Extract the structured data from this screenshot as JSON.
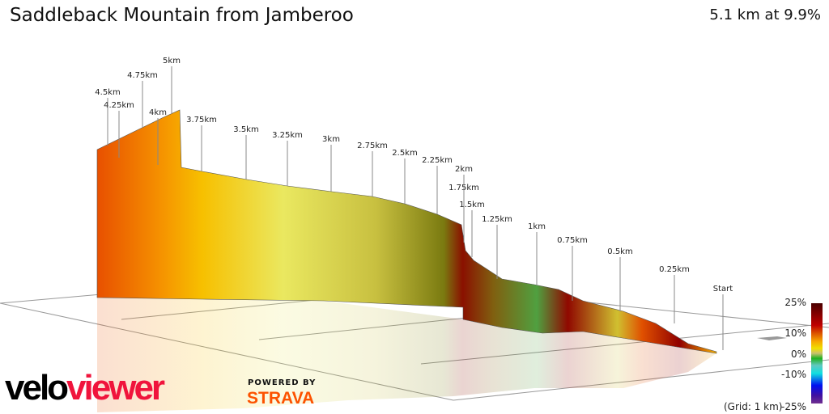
{
  "header": {
    "title": "Saddleback Mountain from Jamberoo",
    "summary": "5.1 km at 9.9%"
  },
  "chart_data": {
    "type": "area",
    "title": "Saddleback Mountain from Jamberoo",
    "distance_km": 5.1,
    "average_gradient_pct": 9.9,
    "markers": [
      "Start",
      "0.25km",
      "0.5km",
      "0.75km",
      "1km",
      "1.25km",
      "1.5km",
      "1.75km",
      "2km",
      "2.25km",
      "2.5km",
      "2.75km",
      "3km",
      "3.25km",
      "3.5km",
      "3.75km",
      "4km",
      "4.25km",
      "4.5km",
      "4.75km",
      "5km"
    ],
    "color_scale": {
      "ticks": [
        "25%",
        "10%",
        "0%",
        "-10%",
        "-25%"
      ],
      "range": [
        -25,
        25
      ],
      "colors": [
        "#4a0000",
        "#c00000",
        "#f7a600",
        "#f0e000",
        "#20b020",
        "#10e0e0",
        "#0010f0",
        "#703090"
      ]
    },
    "grid_note": "(Grid: 1 km)"
  },
  "branding": {
    "logo_a": "velo",
    "logo_b": "viewer",
    "powered": "POWERED BY",
    "strava": "STRAVA"
  }
}
